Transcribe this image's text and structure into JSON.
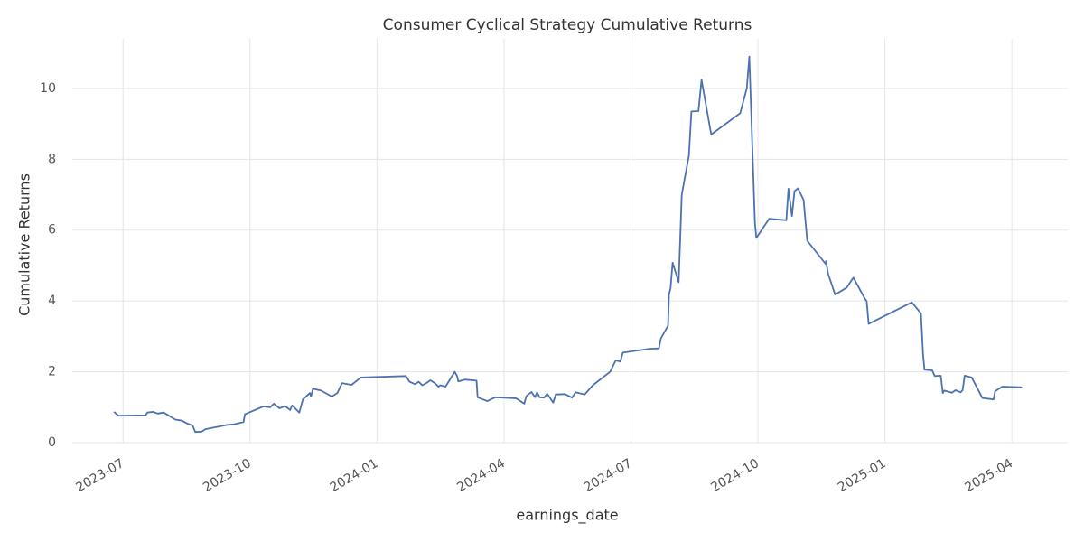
{
  "chart_data": {
    "type": "line",
    "title": "Consumer Cyclical Strategy Cumulative Returns",
    "x_label": "earnings_date",
    "y_label": "Cumulative Returns",
    "xlim": [
      2023.4,
      2025.36
    ],
    "ylim": [
      0,
      11.4
    ],
    "xticks": [
      {
        "value": 2023.5,
        "label": "2023-07"
      },
      {
        "value": 2023.75,
        "label": "2023-10"
      },
      {
        "value": 2024.0,
        "label": "2024-01"
      },
      {
        "value": 2024.25,
        "label": "2024-04"
      },
      {
        "value": 2024.5,
        "label": "2024-07"
      },
      {
        "value": 2024.75,
        "label": "2024-10"
      },
      {
        "value": 2025.0,
        "label": "2025-01"
      },
      {
        "value": 2025.25,
        "label": "2025-04"
      }
    ],
    "yticks": [
      0,
      2,
      4,
      6,
      8,
      10
    ],
    "grid": true,
    "series": [
      {
        "color": "#4c72b0",
        "x": [
          2023.482,
          2023.491,
          2023.544,
          2023.548,
          2023.559,
          2023.568,
          2023.58,
          2023.603,
          2023.616,
          2023.625,
          2023.637,
          2023.642,
          2023.655,
          2023.662,
          2023.705,
          2023.719,
          2023.737,
          2023.74,
          2023.776,
          2023.79,
          2023.797,
          2023.808,
          2023.819,
          2023.829,
          2023.833,
          2023.847,
          2023.854,
          2023.868,
          2023.87,
          2023.874,
          2023.89,
          2023.911,
          2023.922,
          2023.931,
          2023.95,
          2023.968,
          2024.057,
          2024.064,
          2024.075,
          2024.082,
          2024.089,
          2024.096,
          2024.105,
          2024.114,
          2024.121,
          2024.125,
          2024.135,
          2024.153,
          2024.158,
          2024.16,
          2024.173,
          2024.196,
          2024.198,
          2024.217,
          2024.233,
          2024.274,
          2024.29,
          2024.294,
          2024.304,
          2024.311,
          2024.315,
          2024.32,
          2024.329,
          2024.335,
          2024.347,
          2024.352,
          2024.37,
          2024.384,
          2024.391,
          2024.409,
          2024.425,
          2024.459,
          2024.47,
          2024.479,
          2024.484,
          2024.537,
          2024.555,
          2024.559,
          2024.573,
          2024.575,
          2024.578,
          2024.582,
          2024.594,
          2024.6,
          2024.614,
          2024.619,
          2024.633,
          2024.639,
          2024.658,
          2024.715,
          2024.728,
          2024.733,
          2024.744,
          2024.747,
          2024.772,
          2024.806,
          2024.81,
          2024.817,
          2024.822,
          2024.829,
          2024.84,
          2024.847,
          2024.883,
          2024.884,
          2024.888,
          2024.902,
          2024.925,
          2024.938,
          2024.961,
          2024.964,
          2024.968,
          2025.053,
          2025.071,
          2025.075,
          2025.078,
          2025.093,
          2025.098,
          2025.11,
          2025.114,
          2025.117,
          2025.132,
          2025.139,
          2025.149,
          2025.153,
          2025.157,
          2025.171,
          2025.192,
          2025.214,
          2025.217,
          2025.231,
          2025.27
        ],
        "values": [
          0.87,
          0.76,
          0.77,
          0.85,
          0.87,
          0.82,
          0.85,
          0.65,
          0.62,
          0.55,
          0.48,
          0.3,
          0.31,
          0.38,
          0.5,
          0.52,
          0.58,
          0.8,
          1.02,
          1.0,
          1.1,
          0.97,
          1.03,
          0.92,
          1.05,
          0.85,
          1.22,
          1.4,
          1.3,
          1.52,
          1.47,
          1.3,
          1.4,
          1.68,
          1.63,
          1.84,
          1.88,
          1.72,
          1.65,
          1.72,
          1.62,
          1.67,
          1.76,
          1.68,
          1.58,
          1.62,
          1.58,
          2.0,
          1.87,
          1.73,
          1.78,
          1.75,
          1.28,
          1.17,
          1.28,
          1.25,
          1.1,
          1.31,
          1.43,
          1.28,
          1.42,
          1.28,
          1.27,
          1.38,
          1.13,
          1.36,
          1.37,
          1.27,
          1.42,
          1.36,
          1.62,
          2.0,
          2.32,
          2.29,
          2.54,
          2.65,
          2.66,
          2.94,
          3.3,
          4.18,
          4.36,
          5.08,
          4.53,
          7.0,
          8.1,
          9.35,
          9.36,
          10.24,
          8.7,
          9.3,
          10.0,
          10.9,
          6.2,
          5.78,
          6.32,
          6.28,
          7.17,
          6.4,
          7.1,
          7.18,
          6.85,
          5.7,
          5.05,
          5.12,
          4.78,
          4.18,
          4.38,
          4.66,
          4.05,
          4.0,
          3.35,
          3.96,
          3.65,
          2.5,
          2.06,
          2.04,
          1.88,
          1.89,
          1.4,
          1.47,
          1.41,
          1.48,
          1.42,
          1.48,
          1.89,
          1.84,
          1.26,
          1.22,
          1.45,
          1.58,
          1.56
        ]
      }
    ]
  }
}
